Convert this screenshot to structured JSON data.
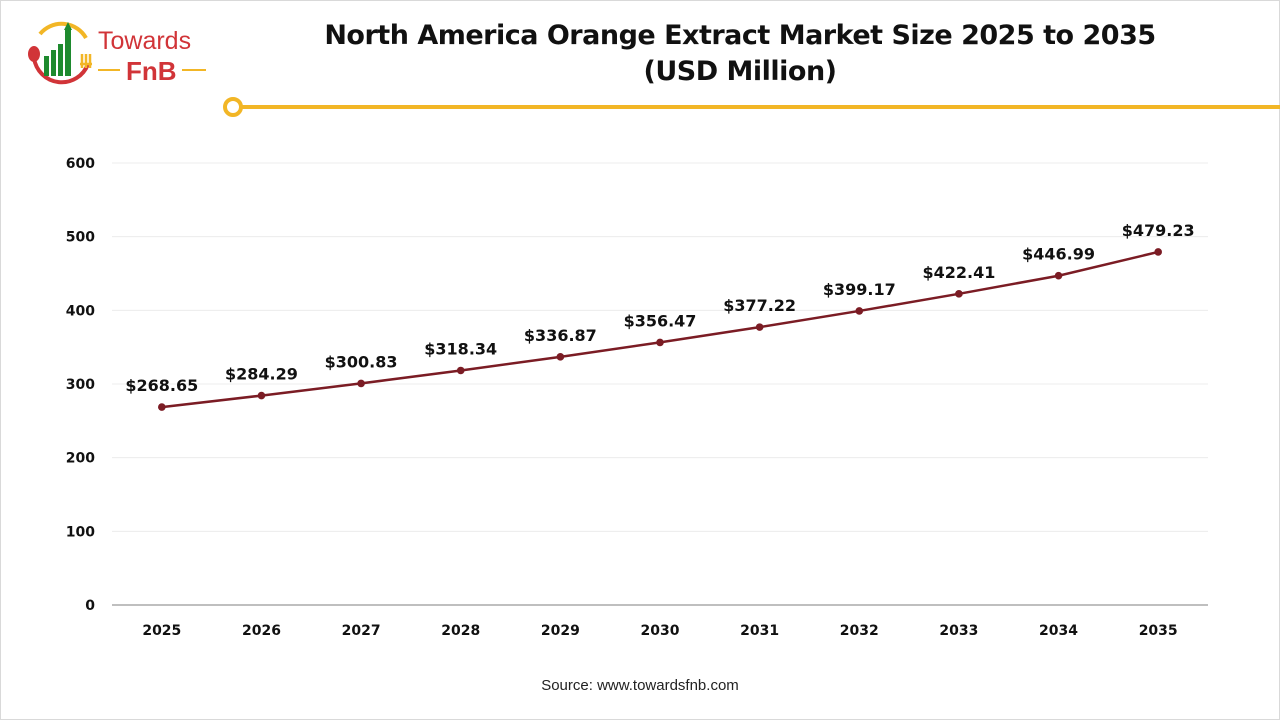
{
  "logo": {
    "line1": "Towards",
    "line2": "FnB"
  },
  "colors": {
    "line": "#7b1c24",
    "accent": "#f2b626",
    "logo_red": "#d13438",
    "logo_green": "#1e8a2e",
    "grid": "#ececec"
  },
  "source": "Source: www.towardsfnb.com",
  "chart_data": {
    "type": "line",
    "title": "North America Orange Extract Market Size 2025 to 2035",
    "subtitle": "(USD Million)",
    "categories": [
      "2025",
      "2026",
      "2027",
      "2028",
      "2029",
      "2030",
      "2031",
      "2032",
      "2033",
      "2034",
      "2035"
    ],
    "values": [
      268.65,
      284.29,
      300.83,
      318.34,
      336.87,
      356.47,
      377.22,
      399.17,
      422.41,
      446.99,
      479.23
    ],
    "data_labels": [
      "$268.65",
      "$284.29",
      "$300.83",
      "$318.34",
      "$336.87",
      "$356.47",
      "$377.22",
      "$399.17",
      "$422.41",
      "$446.99",
      "$479.23"
    ],
    "yticks": [
      "0",
      "100",
      "200",
      "300",
      "400",
      "500",
      "600"
    ],
    "ylim": [
      0,
      600
    ],
    "grid": true,
    "legend": "none"
  }
}
